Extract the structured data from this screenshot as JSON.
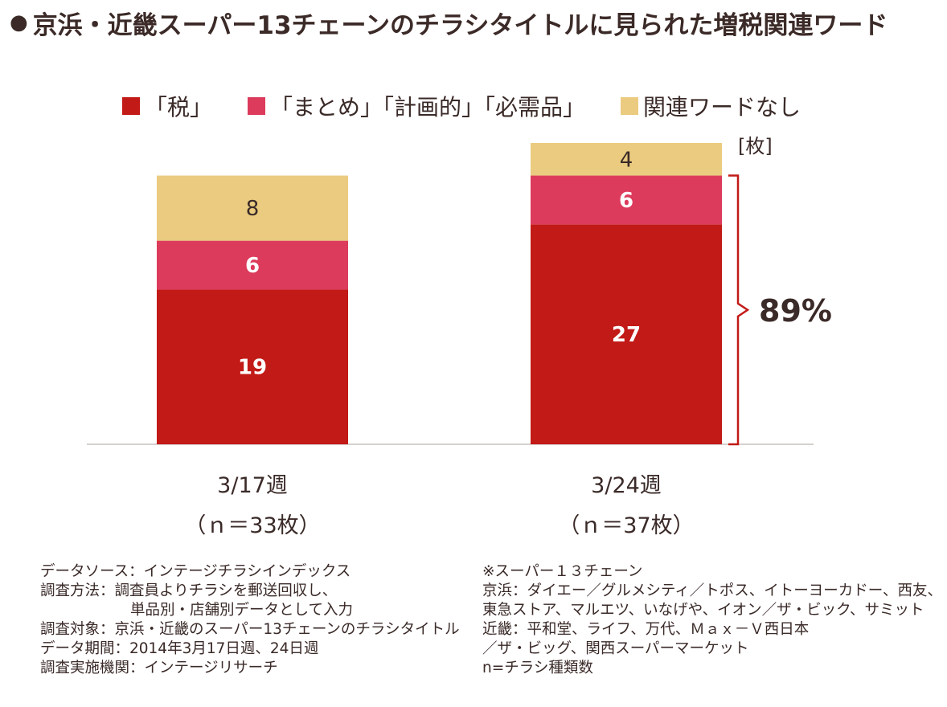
{
  "header": {
    "bullet": "●",
    "title": "京浜・近畿スーパー13チェーンのチラシタイトルに見られた増税関連ワード"
  },
  "chart_data": {
    "type": "bar",
    "stacked": true,
    "unit": "[枚]",
    "categories": [
      "3/17週",
      "3/24週"
    ],
    "category_notes": [
      "（ｎ＝33枚）",
      "（ｎ＝37枚）"
    ],
    "series": [
      {
        "name": "「税」",
        "color": "#c21a17",
        "label_color": "#ffffff",
        "values": [
          19,
          27
        ]
      },
      {
        "name": "「まとめ」「計画的」「必需品」",
        "color": "#dc3b5c",
        "label_color": "#ffffff",
        "values": [
          6,
          6
        ]
      },
      {
        "name": "関連ワードなし",
        "color": "#eacb7f",
        "label_color": "#3a2a28",
        "values": [
          8,
          4
        ]
      }
    ],
    "annotation": {
      "text": "89%",
      "category_index": 1,
      "series_indices": [
        0,
        1
      ]
    },
    "ylim": [
      0,
      37
    ],
    "legend_position": "top",
    "grid": false
  },
  "notes": {
    "left": [
      "データソース：インテージチラシインデックス",
      "調査方法：調査員よりチラシを郵送回収し、",
      "単品別・店舗別データとして入力",
      "調査対象：京浜・近畿のスーパー13チェーンのチラシタイトル",
      "データ期間：2014年3月17日週、24日週",
      "調査実施機関：インテージリサーチ"
    ],
    "right": [
      "※スーパー１３チェーン",
      "京浜：ダイエー／グルメシティ／トポス、イトーヨーカドー、西友、",
      "東急ストア、マルエツ、いなげや、イオン／ザ・ビック、サミット",
      "近畿：平和堂、ライフ、万代、Ｍａｘ－Ｖ西日本",
      "／ザ・ビッグ、関西スーパーマーケット",
      "n=チラシ種類数"
    ]
  }
}
